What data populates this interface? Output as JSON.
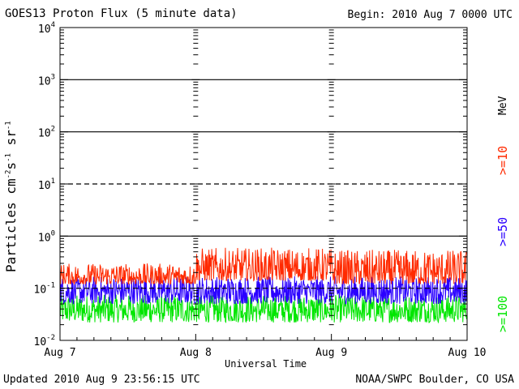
{
  "header": {
    "title": "GOES13 Proton Flux (5 minute data)",
    "begin": "Begin: 2010 Aug 7 0000 UTC"
  },
  "footer": {
    "updated": "Updated 2010 Aug  9 23:56:15 UTC",
    "credit": "NOAA/SWPC Boulder, CO USA"
  },
  "chart_data": {
    "type": "line",
    "title": "GOES13 Proton Flux (5 minute data)",
    "xlabel": "Universal Time",
    "ylabel_parts": {
      "base": "Particles cm",
      "exp1": "-2",
      "s": "s",
      "exp2": "-1",
      "sr": "sr",
      "exp3": "-1"
    },
    "y_scale": "log",
    "ylim": [
      0.01,
      10000
    ],
    "y_ticks": [
      {
        "value": 10000,
        "base": "10",
        "exp": "4"
      },
      {
        "value": 1000,
        "base": "10",
        "exp": "3"
      },
      {
        "value": 100,
        "base": "10",
        "exp": "2"
      },
      {
        "value": 10,
        "base": "10",
        "exp": "1"
      },
      {
        "value": 1,
        "base": "10",
        "exp": "0"
      },
      {
        "value": 0.1,
        "base": "10",
        "exp": "-1"
      },
      {
        "value": 0.01,
        "base": "10",
        "exp": "-2"
      }
    ],
    "x_ticks": [
      "Aug 7",
      "Aug 8",
      "Aug 9",
      "Aug 10"
    ],
    "xlim_days": [
      0,
      3
    ],
    "threshold_lines": [
      {
        "value": 1000,
        "style": "solid"
      },
      {
        "value": 100,
        "style": "solid"
      },
      {
        "value": 10,
        "style": "dashed"
      },
      {
        "value": 1,
        "style": "solid"
      },
      {
        "value": 0.1,
        "style": "dashed"
      }
    ],
    "unit_label": "MeV",
    "series": [
      {
        "name": ">=10",
        "color": "#ff2a00",
        "segments": [
          {
            "from_day": 0.0,
            "to_day": 1.0,
            "min": 0.12,
            "max": 0.3
          },
          {
            "from_day": 1.0,
            "to_day": 2.0,
            "min": 0.14,
            "max": 0.6
          },
          {
            "from_day": 2.0,
            "to_day": 3.0,
            "min": 0.12,
            "max": 0.55
          }
        ]
      },
      {
        "name": ">=50",
        "color": "#2a00ff",
        "segments": [
          {
            "from_day": 0.0,
            "to_day": 3.0,
            "min": 0.05,
            "max": 0.17
          }
        ]
      },
      {
        "name": ">=100",
        "color": "#00e600",
        "segments": [
          {
            "from_day": 0.0,
            "to_day": 3.0,
            "min": 0.022,
            "max": 0.075
          }
        ]
      }
    ]
  }
}
